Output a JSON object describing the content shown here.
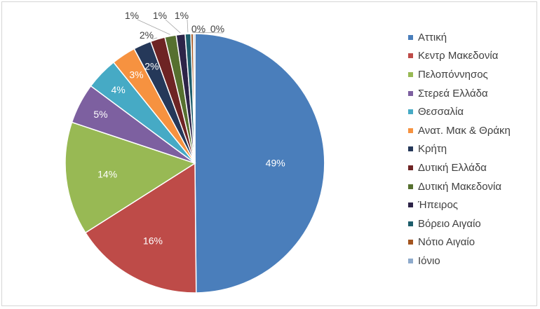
{
  "chart_data": {
    "type": "pie",
    "title": "",
    "legend_position": "right",
    "slices": [
      {
        "name": "Αττική",
        "value": 49.4,
        "label": "49%",
        "color": "#4a7ebb"
      },
      {
        "name": "Κεντρ Μακεδονία",
        "value": 16.0,
        "label": "16%",
        "color": "#be4b48"
      },
      {
        "name": "Πελοπόννησος",
        "value": 14.0,
        "label": "14%",
        "color": "#98b954"
      },
      {
        "name": "Στερεά Ελλάδα",
        "value": 5.0,
        "label": "5%",
        "color": "#7d60a0"
      },
      {
        "name": "Θεσσαλία",
        "value": 4.0,
        "label": "4%",
        "color": "#46aac5"
      },
      {
        "name": "Ανατ. Μακ & Θράκη",
        "value": 3.0,
        "label": "3%",
        "color": "#f69240"
      },
      {
        "name": "Κρήτη",
        "value": 2.2,
        "label": "2%",
        "color": "#253859"
      },
      {
        "name": "Δυτική Ελλάδα",
        "value": 1.8,
        "label": "2%",
        "color": "#6e2424"
      },
      {
        "name": "Δυτική Μακεδονία",
        "value": 1.4,
        "label": "1%",
        "color": "#56702f"
      },
      {
        "name": "Ήπειρος",
        "value": 1.1,
        "label": "1%",
        "color": "#2d2448"
      },
      {
        "name": "Βόρειο Αιγαίο",
        "value": 0.7,
        "label": "1%",
        "color": "#1d5d6b"
      },
      {
        "name": "Νότιο Αιγαίο",
        "value": 0.3,
        "label": "0%",
        "color": "#a35520"
      },
      {
        "name": "Ιόνιο",
        "value": 0.2,
        "label": "0%",
        "color": "#8eaacc"
      }
    ]
  }
}
